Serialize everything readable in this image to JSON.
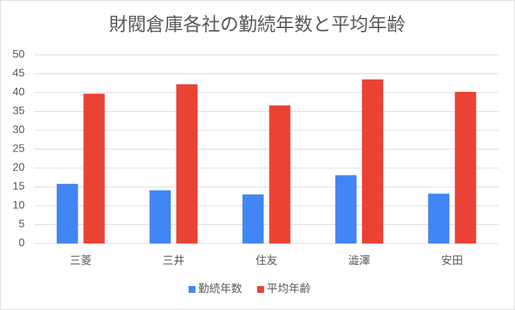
{
  "chart_data": {
    "type": "bar",
    "title": "財閥倉庫各社の勤続年数と平均年齢",
    "categories": [
      "三菱",
      "三井",
      "住友",
      "澁澤",
      "安田"
    ],
    "series": [
      {
        "name": "勤続年数",
        "color": "#4285f4",
        "values": [
          15.8,
          14.1,
          13.0,
          18.1,
          13.2
        ]
      },
      {
        "name": "平均年齢",
        "color": "#ea4335",
        "values": [
          39.7,
          42.2,
          36.6,
          43.5,
          40.2
        ]
      }
    ],
    "ylim": [
      0,
      50
    ],
    "yticks": [
      0,
      5,
      10,
      15,
      20,
      25,
      30,
      35,
      40,
      45,
      50
    ],
    "grid": true,
    "legend": "bottom"
  }
}
